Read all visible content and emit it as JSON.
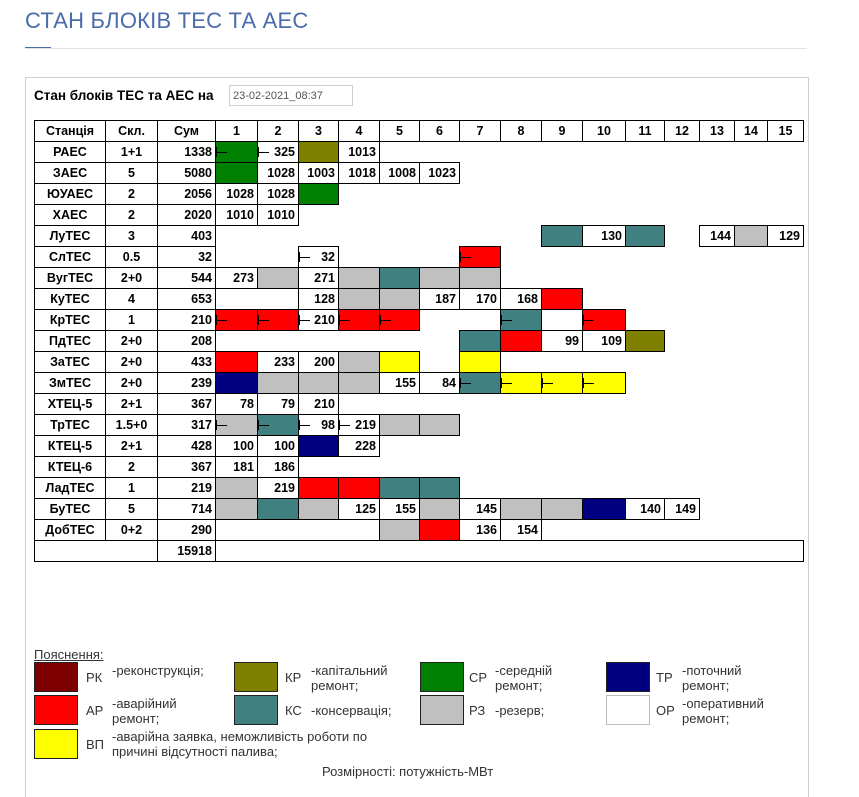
{
  "page_title": "СТАН БЛОКІВ ТЕС ТА АЕС",
  "heading": "Стан блоків ТЕС та АЕС на",
  "date_value": "23-02-2021_08:37",
  "colors": {
    "RK": "#7f0000",
    "KR": "#808000",
    "SR": "#008000",
    "TR": "#000080",
    "AR": "#ff0000",
    "KS": "#408080",
    "RZ": "#c0c0c0",
    "OR": "#ffffff",
    "VP": "#ffff00"
  },
  "columns": [
    "Станція",
    "Скл.",
    "Сум",
    "1",
    "2",
    "3",
    "4",
    "5",
    "6",
    "7",
    "8",
    "9",
    "10",
    "11",
    "12",
    "13",
    "14",
    "15"
  ],
  "stations": [
    {
      "name": "РАЕС",
      "skl": "1+1",
      "sum": "1338",
      "units": [
        {
          "c": "SR",
          "i": true
        },
        {
          "v": "325",
          "i": true
        },
        {
          "c": "KR"
        },
        {
          "v": "1013"
        }
      ]
    },
    {
      "name": "ЗАЕС",
      "skl": "5",
      "sum": "5080",
      "units": [
        {
          "c": "SR"
        },
        {
          "v": "1028"
        },
        {
          "v": "1003"
        },
        {
          "v": "1018"
        },
        {
          "v": "1008"
        },
        {
          "v": "1023"
        }
      ]
    },
    {
      "name": "ЮУАЕС",
      "skl": "2",
      "sum": "2056",
      "units": [
        {
          "v": "1028"
        },
        {
          "v": "1028"
        },
        {
          "c": "SR"
        }
      ]
    },
    {
      "name": "ХАЕС",
      "skl": "2",
      "sum": "2020",
      "units": [
        {
          "v": "1010"
        },
        {
          "v": "1010"
        }
      ]
    },
    {
      "name": "ЛуТЕС",
      "skl": "3",
      "sum": "403",
      "units": [
        null,
        null,
        null,
        null,
        null,
        null,
        null,
        null,
        {
          "c": "KS"
        },
        {
          "v": "130"
        },
        {
          "c": "KS"
        },
        null,
        {
          "v": "144"
        },
        {
          "c": "RZ"
        },
        {
          "v": "129"
        }
      ]
    },
    {
      "name": "СлТЕС",
      "skl": "0.5",
      "sum": "32",
      "units": [
        null,
        null,
        {
          "v": "32",
          "i": true
        },
        null,
        null,
        null,
        {
          "c": "AR",
          "i": true
        }
      ]
    },
    {
      "name": "ВугТЕС",
      "skl": "2+0",
      "sum": "544",
      "units": [
        {
          "v": "273"
        },
        {
          "c": "RZ"
        },
        {
          "v": "271"
        },
        {
          "c": "RZ"
        },
        {
          "c": "KS"
        },
        {
          "c": "RZ"
        },
        {
          "c": "RZ"
        }
      ]
    },
    {
      "name": "КуТЕС",
      "skl": "4",
      "sum": "653",
      "units": [
        null,
        null,
        {
          "v": "128"
        },
        {
          "c": "RZ"
        },
        {
          "c": "RZ"
        },
        {
          "v": "187"
        },
        {
          "v": "170"
        },
        {
          "v": "168"
        },
        {
          "c": "AR"
        }
      ]
    },
    {
      "name": "КрТЕС",
      "skl": "1",
      "sum": "210",
      "units": [
        {
          "c": "AR",
          "i": true
        },
        {
          "c": "AR",
          "i": true
        },
        {
          "v": "210",
          "i": true
        },
        {
          "c": "AR",
          "i": true
        },
        {
          "c": "AR",
          "i": true
        },
        null,
        null,
        {
          "c": "KS",
          "i": true
        },
        null,
        {
          "c": "AR",
          "i": true
        }
      ]
    },
    {
      "name": "ПдТЕС",
      "skl": "2+0",
      "sum": "208",
      "units": [
        null,
        null,
        null,
        null,
        null,
        null,
        {
          "c": "KS"
        },
        {
          "c": "AR"
        },
        {
          "v": "99"
        },
        {
          "v": "109"
        },
        {
          "c": "KR"
        }
      ]
    },
    {
      "name": "ЗаТЕС",
      "skl": "2+0",
      "sum": "433",
      "units": [
        {
          "c": "AR"
        },
        {
          "v": "233"
        },
        {
          "v": "200"
        },
        {
          "c": "RZ"
        },
        {
          "c": "VP"
        },
        null,
        {
          "c": "VP"
        }
      ]
    },
    {
      "name": "ЗмТЕС",
      "skl": "2+0",
      "sum": "239",
      "units": [
        {
          "c": "TR"
        },
        {
          "c": "RZ"
        },
        {
          "c": "RZ"
        },
        {
          "c": "RZ"
        },
        {
          "v": "155"
        },
        {
          "v": "84"
        },
        {
          "c": "KS",
          "i": true
        },
        {
          "c": "VP",
          "i": true
        },
        {
          "c": "VP",
          "i": true
        },
        {
          "c": "VP",
          "i": true
        }
      ]
    },
    {
      "name": "ХТЕЦ-5",
      "skl": "2+1",
      "sum": "367",
      "units": [
        {
          "v": "78"
        },
        {
          "v": "79"
        },
        {
          "v": "210"
        }
      ]
    },
    {
      "name": "ТрТЕС",
      "skl": "1.5+0",
      "sum": "317",
      "units": [
        {
          "c": "RZ",
          "i": true
        },
        {
          "c": "KS",
          "i": true
        },
        {
          "v": "98",
          "i": true
        },
        {
          "v": "219",
          "i": true
        },
        {
          "c": "RZ"
        },
        {
          "c": "RZ"
        }
      ]
    },
    {
      "name": "КТЕЦ-5",
      "skl": "2+1",
      "sum": "428",
      "units": [
        {
          "v": "100"
        },
        {
          "v": "100"
        },
        {
          "c": "TR"
        },
        {
          "v": "228"
        }
      ]
    },
    {
      "name": "КТЕЦ-6",
      "skl": "2",
      "sum": "367",
      "units": [
        {
          "v": "181"
        },
        {
          "v": "186"
        }
      ]
    },
    {
      "name": "ЛадТЕС",
      "skl": "1",
      "sum": "219",
      "units": [
        {
          "c": "RZ"
        },
        {
          "v": "219"
        },
        {
          "c": "AR"
        },
        {
          "c": "AR"
        },
        {
          "c": "KS"
        },
        {
          "c": "KS"
        }
      ]
    },
    {
      "name": "БуТЕС",
      "skl": "5",
      "sum": "714",
      "units": [
        {
          "c": "RZ"
        },
        {
          "c": "KS"
        },
        {
          "c": "RZ"
        },
        {
          "v": "125"
        },
        {
          "v": "155"
        },
        {
          "c": "RZ"
        },
        {
          "v": "145"
        },
        {
          "c": "RZ"
        },
        {
          "c": "RZ"
        },
        {
          "c": "TR"
        },
        {
          "v": "140"
        },
        {
          "v": "149"
        }
      ]
    },
    {
      "name": "ДобТЕС",
      "skl": "0+2",
      "sum": "290",
      "units": [
        null,
        null,
        null,
        null,
        {
          "c": "RZ"
        },
        {
          "c": "AR"
        },
        {
          "v": "136"
        },
        {
          "v": "154"
        }
      ]
    }
  ],
  "total_sum": "15918",
  "legend": {
    "title": "Пояснення:",
    "items": [
      {
        "key": "RK",
        "code": "РК",
        "desc": "-реконструкція;"
      },
      {
        "key": "KR",
        "code": "КР",
        "desc": "-капітальний ремонт;"
      },
      {
        "key": "SR",
        "code": "СР",
        "desc": "-середній ремонт;"
      },
      {
        "key": "TR",
        "code": "ТР",
        "desc": "-поточний ремонт;"
      },
      {
        "key": "AR",
        "code": "АР",
        "desc": "-аварійний ремонт;"
      },
      {
        "key": "KS",
        "code": "КС",
        "desc": "-консервація;"
      },
      {
        "key": "RZ",
        "code": "РЗ",
        "desc": "-резерв;"
      },
      {
        "key": "OR",
        "code": "ОР",
        "desc": "-оперативний ремонт;"
      },
      {
        "key": "VP",
        "code": "ВП",
        "desc": "-аварійна заявка, неможливість роботи по причині відсутності палива;"
      }
    ]
  },
  "dimensions_note": "Розмірності: потужність-МВт"
}
